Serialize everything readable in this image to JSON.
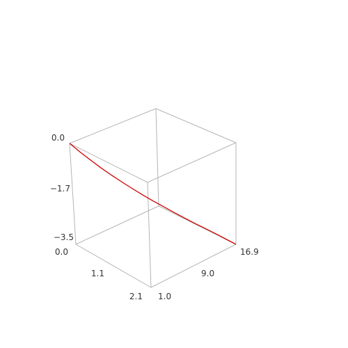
{
  "chart_data": {
    "type": "line",
    "projection": "3d",
    "title": "",
    "xlabel": "",
    "ylabel": "",
    "zlabel": "",
    "xlim": [
      1.0,
      16.9
    ],
    "ylim": [
      0.0,
      2.1
    ],
    "zlim": [
      -3.5,
      0.0
    ],
    "x_ticks": [
      "1.0",
      "9.0",
      "16.9"
    ],
    "y_ticks": [
      "0.0",
      "1.1",
      "2.1"
    ],
    "z_ticks": [
      "0.0",
      "-1.7",
      "-3.5"
    ],
    "z_tick_text": [
      "0.0",
      "−1.7",
      "−3.5"
    ],
    "series": [
      {
        "color": "#cc0000",
        "x": [
          1.0,
          2.0,
          3.0,
          4.0,
          5.0,
          6.0,
          7.0,
          8.0,
          9.0,
          10.0,
          11.0,
          12.0,
          13.0,
          14.0,
          15.0,
          16.0,
          16.9
        ],
        "y": [
          0.0,
          0.0,
          0.0,
          0.0,
          0.0,
          0.0,
          0.0,
          0.0,
          0.0,
          0.0,
          0.0,
          0.0,
          0.0,
          0.0,
          0.0,
          0.0,
          0.0
        ],
        "z": [
          0.0,
          -0.3,
          -0.58,
          -0.85,
          -1.1,
          -1.34,
          -1.57,
          -1.79,
          -2.0,
          -2.2,
          -2.4,
          -2.59,
          -2.78,
          -2.96,
          -3.14,
          -3.33,
          -3.5
        ]
      }
    ],
    "grid": false,
    "legend": "none",
    "box": true
  }
}
